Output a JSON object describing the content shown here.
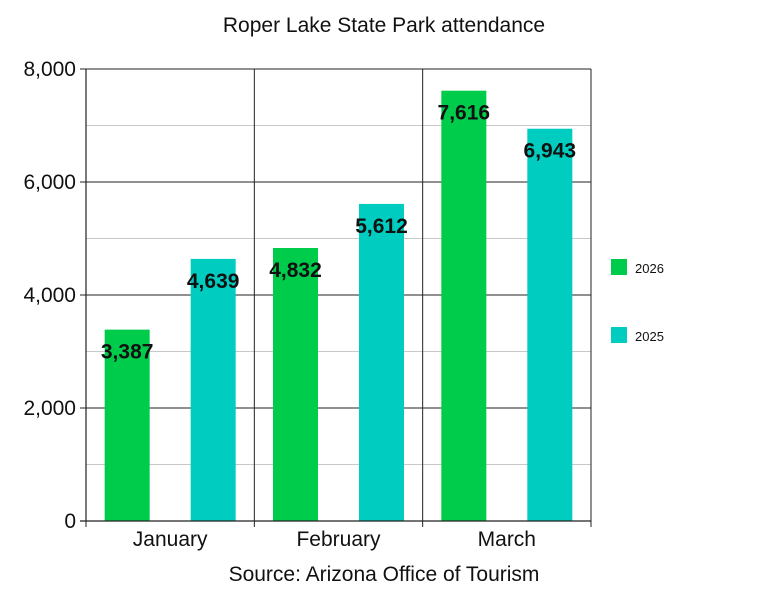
{
  "chart_data": {
    "type": "bar",
    "title": "Roper Lake State Park attendance",
    "source": "Source: Arizona Office of Tourism",
    "categories": [
      "January",
      "February",
      "March"
    ],
    "series": [
      {
        "name": "2026",
        "color": "#00cc4c",
        "values": [
          3387,
          4832,
          7616
        ],
        "labels": [
          "3,387",
          "4,832",
          "7,616"
        ]
      },
      {
        "name": "2025",
        "color": "#00ccc0",
        "values": [
          4639,
          5612,
          6943
        ],
        "labels": [
          "4,639",
          "5,612",
          "6,943"
        ]
      }
    ],
    "y_ticks": [
      0,
      2000,
      4000,
      6000,
      8000
    ],
    "y_tick_labels": [
      "0",
      "2,000",
      "4,000",
      "6,000",
      "8,000"
    ],
    "ylim": [
      0,
      8000
    ],
    "grid": true,
    "legend_position": "right"
  }
}
